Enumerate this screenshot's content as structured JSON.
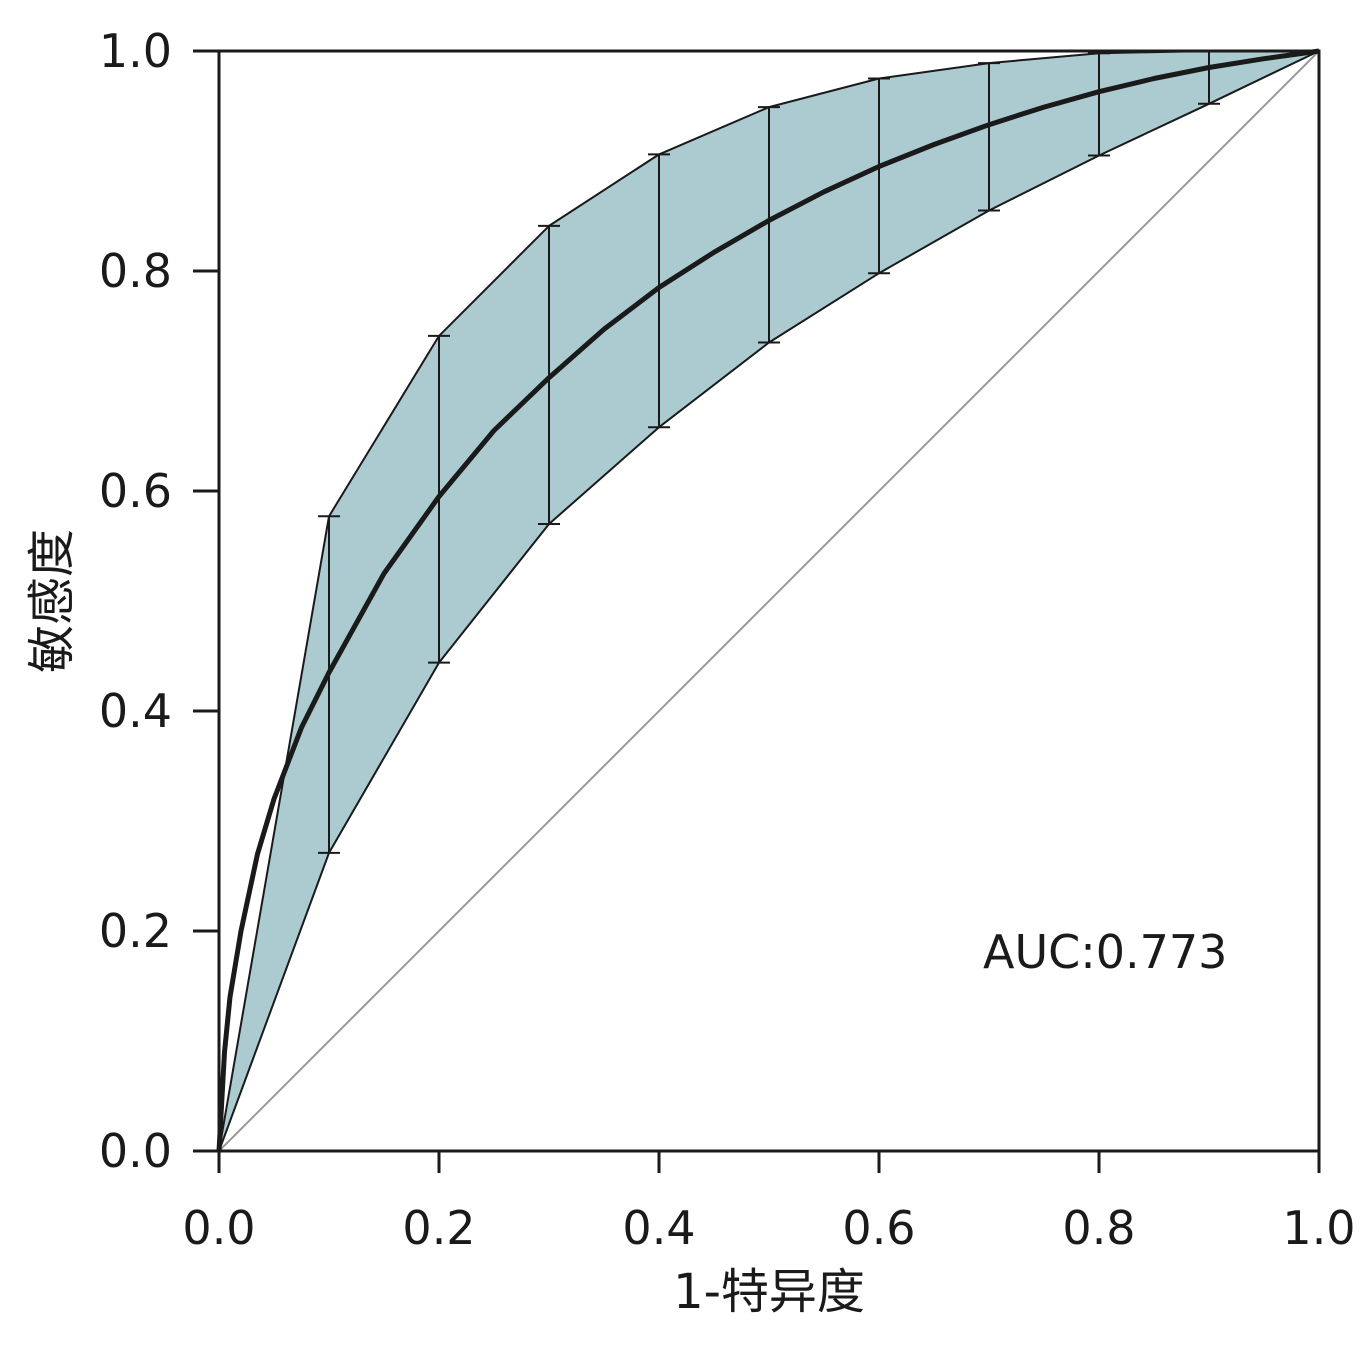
{
  "chart_data": {
    "type": "line",
    "title": "",
    "xlabel": "1-特异度",
    "ylabel": "敏感度",
    "xlim": [
      0,
      1
    ],
    "ylim": [
      0,
      1
    ],
    "xticks": [
      "0.0",
      "0.2",
      "0.4",
      "0.6",
      "0.8",
      "1.0"
    ],
    "yticks": [
      "0.0",
      "0.2",
      "0.4",
      "0.6",
      "0.8",
      "1.0"
    ],
    "grid": false,
    "annotation": "AUC:0.773",
    "colors": {
      "band": "#abcbd1",
      "curve": "#1a1a1a",
      "diagonal": "#999999"
    },
    "roc_curve": {
      "x": [
        0,
        0.005,
        0.01,
        0.02,
        0.035,
        0.05,
        0.075,
        0.1,
        0.15,
        0.2,
        0.25,
        0.3,
        0.35,
        0.4,
        0.45,
        0.5,
        0.55,
        0.6,
        0.65,
        0.7,
        0.75,
        0.8,
        0.85,
        0.9,
        0.95,
        1.0
      ],
      "y": [
        0,
        0.09,
        0.14,
        0.2,
        0.27,
        0.32,
        0.385,
        0.435,
        0.525,
        0.595,
        0.655,
        0.703,
        0.747,
        0.785,
        0.817,
        0.846,
        0.872,
        0.895,
        0.915,
        0.933,
        0.949,
        0.963,
        0.975,
        0.985,
        0.993,
        1.0
      ]
    },
    "confidence_band": {
      "x": [
        0,
        0.1,
        0.2,
        0.3,
        0.4,
        0.5,
        0.6,
        0.7,
        0.8,
        0.9,
        1.0
      ],
      "upper": [
        0,
        0.577,
        0.741,
        0.841,
        0.906,
        0.949,
        0.975,
        0.989,
        0.998,
        1.0,
        1.0
      ],
      "lower": [
        0,
        0.271,
        0.444,
        0.57,
        0.658,
        0.735,
        0.798,
        0.855,
        0.905,
        0.952,
        1.0
      ]
    },
    "reference_line": {
      "x": [
        0,
        1
      ],
      "y": [
        0,
        1
      ]
    }
  }
}
